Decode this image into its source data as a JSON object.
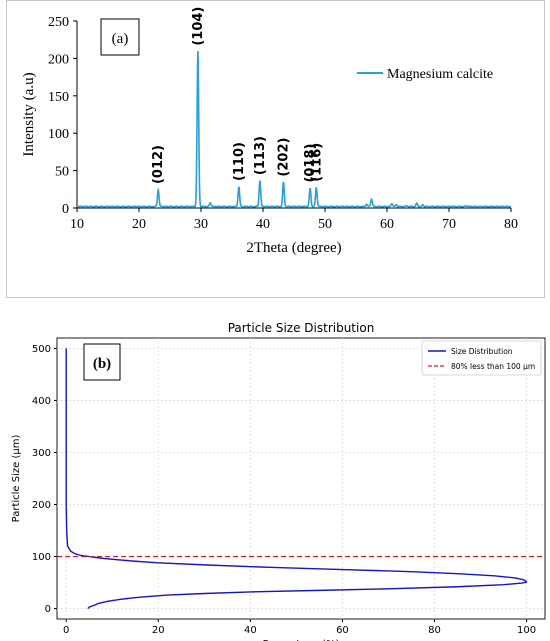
{
  "chart_data": [
    {
      "type": "line",
      "panel_label": "(a)",
      "title": "",
      "xlabel": "2Theta (degree)",
      "ylabel": "Intensity (a.u)",
      "xlim": [
        10,
        80
      ],
      "ylim": [
        0,
        250
      ],
      "xticks": [
        10,
        20,
        30,
        40,
        50,
        60,
        70,
        80
      ],
      "yticks": [
        0,
        50,
        100,
        150,
        200,
        250
      ],
      "legend_position": "top-right",
      "grid": false,
      "series": [
        {
          "name": "Magnesium calcite",
          "color": "#2a9fd8",
          "baseline": 2,
          "peaks": [
            {
              "x": 23.1,
              "y": 24
            },
            {
              "x": 29.5,
              "y": 209
            },
            {
              "x": 31.5,
              "y": 7
            },
            {
              "x": 36.1,
              "y": 28
            },
            {
              "x": 39.5,
              "y": 36
            },
            {
              "x": 43.3,
              "y": 34
            },
            {
              "x": 47.6,
              "y": 26
            },
            {
              "x": 48.6,
              "y": 27
            },
            {
              "x": 56.7,
              "y": 5
            },
            {
              "x": 57.5,
              "y": 12
            },
            {
              "x": 60.8,
              "y": 6
            },
            {
              "x": 61.5,
              "y": 4
            },
            {
              "x": 63.2,
              "y": 3
            },
            {
              "x": 64.8,
              "y": 6
            },
            {
              "x": 65.8,
              "y": 4
            },
            {
              "x": 69.5,
              "y": 2
            },
            {
              "x": 72.9,
              "y": 3
            },
            {
              "x": 77.2,
              "y": 2
            }
          ]
        }
      ],
      "annotations": [
        {
          "text": "(012)",
          "x": 23.1,
          "y": 24
        },
        {
          "text": "(104)",
          "x": 29.5,
          "y": 209
        },
        {
          "text": "(110)",
          "x": 36.1,
          "y": 28
        },
        {
          "text": "(113)",
          "x": 39.5,
          "y": 36
        },
        {
          "text": "(202)",
          "x": 43.3,
          "y": 34
        },
        {
          "text": "(018)",
          "x": 47.6,
          "y": 26
        },
        {
          "text": "(116)",
          "x": 48.6,
          "y": 27
        }
      ]
    },
    {
      "type": "line",
      "panel_label": "(b)",
      "title": "Particle Size Distribution",
      "xlabel": "Percentage (%)",
      "ylabel": "Particle Size (µm)",
      "xlim": [
        -2,
        104
      ],
      "ylim": [
        -20,
        520
      ],
      "xticks": [
        0,
        20,
        40,
        60,
        80,
        100
      ],
      "yticks": [
        0,
        100,
        200,
        300,
        400,
        500
      ],
      "legend_position": "top-right",
      "grid": true,
      "series": [
        {
          "name": "Size Distribution",
          "color": "#1515c8",
          "x": [
            0.0,
            0.0,
            0.0,
            0.1,
            0.3,
            1.0,
            2.0,
            3.3,
            5.0,
            7.5,
            11.0,
            15.0,
            20.0,
            30.0,
            45.0,
            60.0,
            75.0,
            85.0,
            93.0,
            97.5,
            99.5,
            100.0,
            99.0,
            95.0,
            85.0,
            70.0,
            55.0,
            40.0,
            30.0,
            22.0,
            16.0,
            12.0,
            9.0,
            7.0,
            6.0,
            5.0,
            4.7
          ],
          "y": [
            500,
            300,
            200,
            150,
            120,
            110,
            105,
            102,
            100,
            97,
            94,
            91,
            88,
            84,
            79,
            75,
            71,
            67,
            63,
            59,
            55,
            51,
            49,
            46,
            42,
            38,
            35,
            32,
            29,
            26,
            22,
            18,
            14,
            10,
            6,
            3,
            0
          ]
        },
        {
          "name": "80% less than 100 µm",
          "color": "#dd1c1c",
          "style": "dashed",
          "y_const": 100
        }
      ]
    }
  ]
}
